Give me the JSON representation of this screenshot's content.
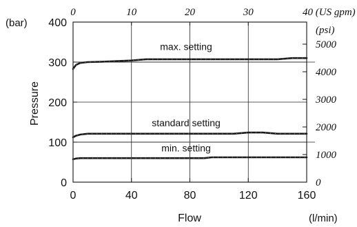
{
  "chart_data": {
    "type": "line",
    "xlabel": "Flow",
    "x_unit": "(l/min)",
    "ylabel": "Pressure",
    "y_unit": "(bar)",
    "xlim": [
      0,
      160
    ],
    "ylim": [
      0,
      400
    ],
    "x_ticks": [
      "0",
      "40",
      "80",
      "120",
      "160"
    ],
    "y_ticks": [
      "0",
      "100",
      "200",
      "300",
      "400"
    ],
    "x2_ticks": [
      "0",
      "10",
      "20",
      "30",
      "40 (US gpm)"
    ],
    "x2_max": 40,
    "y2_unit": "(psi)",
    "y2_ticks": [
      "0",
      "1000",
      "2000",
      "3000",
      "4000",
      "5000"
    ],
    "y2_max": 5800,
    "grid": true,
    "series": [
      {
        "name": "max. setting",
        "x": [
          0,
          2,
          5,
          10,
          20,
          40,
          50,
          60,
          80,
          100,
          120,
          140,
          150,
          160
        ],
        "values": [
          283,
          293,
          298,
          300,
          301,
          304,
          307,
          307,
          307,
          307,
          307,
          307,
          310,
          310
        ]
      },
      {
        "name": "standard setting",
        "x": [
          0,
          2,
          5,
          10,
          20,
          40,
          60,
          80,
          100,
          110,
          120,
          130,
          140,
          150,
          160
        ],
        "values": [
          112,
          116,
          119,
          121,
          121,
          121,
          121,
          121,
          121,
          121,
          124,
          124,
          121,
          121,
          121
        ]
      },
      {
        "name": "min. setting",
        "x": [
          0,
          2,
          5,
          20,
          40,
          60,
          80,
          90,
          95,
          100,
          120,
          140,
          160
        ],
        "values": [
          57,
          59,
          60,
          60,
          60,
          60,
          60,
          60,
          62,
          62,
          62,
          62,
          62
        ]
      }
    ],
    "reference_lines": [
      300,
      100
    ]
  }
}
